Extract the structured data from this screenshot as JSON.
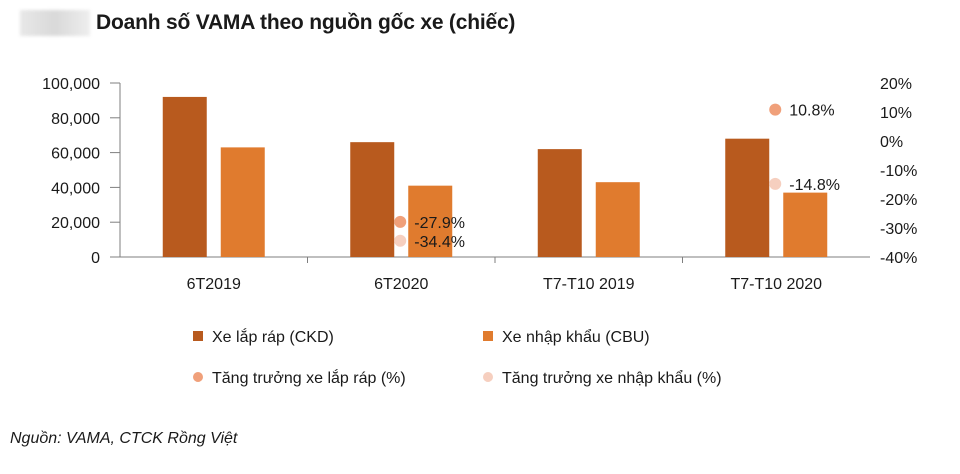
{
  "title": "Doanh số VAMA theo nguồn gốc xe (chiếc)",
  "source": "Nguồn: VAMA, CTCK Rồng Việt",
  "colors": {
    "ckd": "#b85a1e",
    "cbu": "#e07b2e",
    "growth_ckd": "#f0a07a",
    "growth_cbu": "#f6cfbf"
  },
  "chart_data": {
    "type": "bar",
    "categories": [
      "6T2019",
      "6T2020",
      "T7-T10 2019",
      "T7-T10 2020"
    ],
    "series": [
      {
        "name": "Xe lắp ráp (CKD)",
        "type": "bar",
        "axis": "left",
        "values": [
          92000,
          66000,
          62000,
          68000
        ]
      },
      {
        "name": "Xe nhập khẩu (CBU)",
        "type": "bar",
        "axis": "left",
        "values": [
          63000,
          41000,
          43000,
          37000
        ]
      },
      {
        "name": "Tăng trưởng xe lắp ráp (%)",
        "type": "scatter",
        "axis": "right",
        "values": [
          null,
          -27.9,
          null,
          10.8
        ]
      },
      {
        "name": "Tăng trưởng xe nhập khẩu (%)",
        "type": "scatter",
        "axis": "right",
        "values": [
          null,
          -34.4,
          null,
          -14.8
        ]
      }
    ],
    "point_labels": [
      {
        "category": "6T2020",
        "text": "-27.9%"
      },
      {
        "category": "6T2020",
        "text": "-34.4%"
      },
      {
        "category": "T7-T10 2020",
        "text": "10.8%"
      },
      {
        "category": "T7-T10 2020",
        "text": "-14.8%"
      }
    ],
    "left_axis": {
      "ylim": [
        0,
        100000
      ],
      "ticks": [
        0,
        20000,
        40000,
        60000,
        80000,
        100000
      ],
      "tick_labels": [
        "0",
        "20,000",
        "40,000",
        "60,000",
        "80,000",
        "100,000"
      ]
    },
    "right_axis": {
      "ylim": [
        -40,
        20
      ],
      "ticks": [
        -40,
        -30,
        -20,
        -10,
        0,
        10,
        20
      ],
      "tick_labels": [
        "-40%",
        "-30%",
        "-20%",
        "-10%",
        "0%",
        "10%",
        "20%"
      ]
    },
    "grid": false,
    "legend_position": "bottom"
  }
}
